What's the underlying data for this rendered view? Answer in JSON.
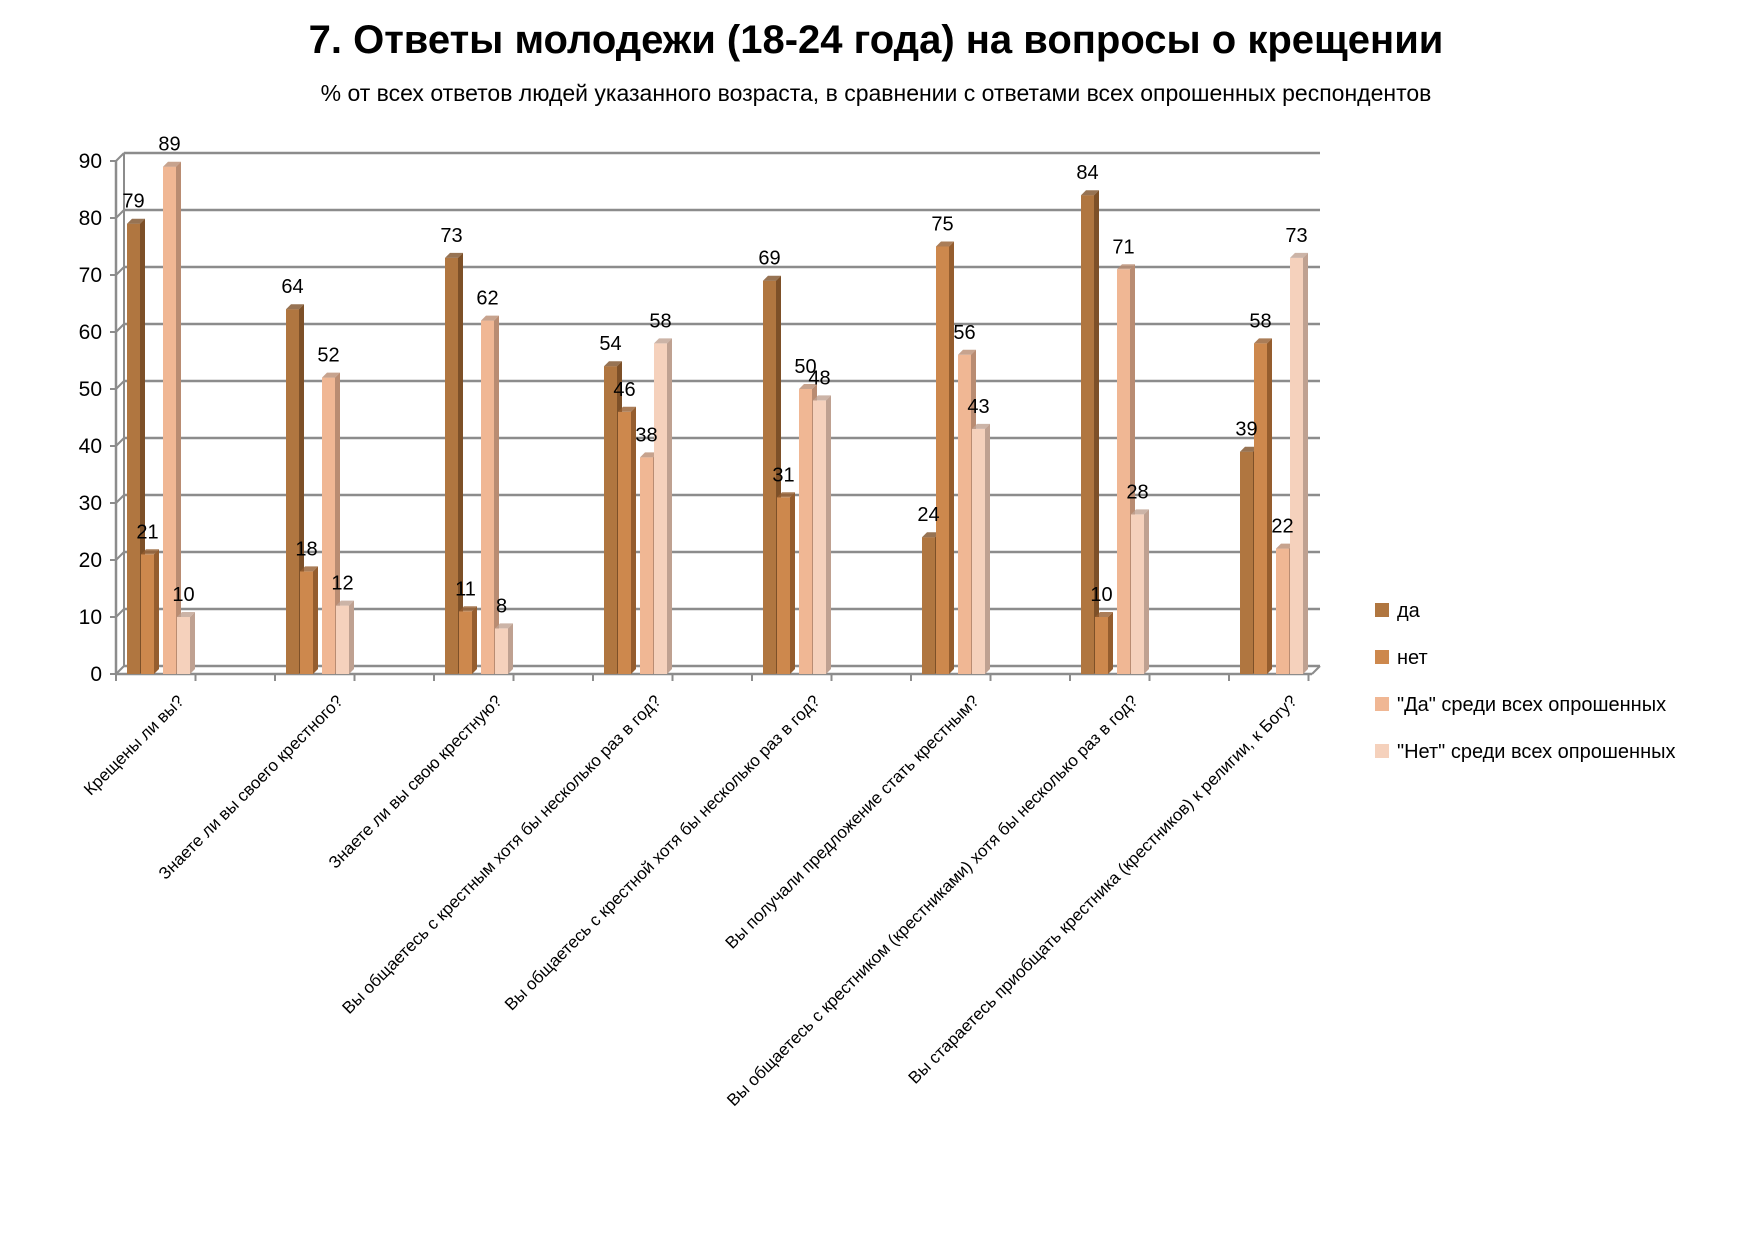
{
  "chart_data": {
    "type": "bar",
    "title": "7. Ответы молодежи (18-24 года) на вопросы о крещении",
    "subtitle": "% от всех ответов людей указанного возраста, в сравнении с ответами всех опрошенных респондентов",
    "xlabel": "",
    "ylabel": "",
    "ylim": [
      0,
      90
    ],
    "yticks": [
      "0",
      "10",
      "20",
      "30",
      "40",
      "50",
      "60",
      "70",
      "80",
      "90"
    ],
    "grid": true,
    "legend_position": "right",
    "categories": [
      "Крещены ли вы?",
      "Знаете ли вы своего крестного?",
      "Знаете ли вы свою крестную?",
      "Вы общаетесь с крестным хотя бы несколько раз в год?",
      "Вы общаетесь с крестной хотя бы несколько раз в год?",
      "Вы получали предложение стать крестным?",
      "Вы общаетесь с крестником (крестниками) хотя бы несколько раз в год?",
      "Вы стараетесь приобщать крестника (крестников) к религии, к Богу?"
    ],
    "series": [
      {
        "name": "да",
        "color": "#b07640",
        "side": "#7d5028",
        "values": [
          79,
          64,
          73,
          54,
          69,
          24,
          84,
          39
        ]
      },
      {
        "name": "нет",
        "color": "#cd884d",
        "side": "#955d2e",
        "values": [
          21,
          18,
          11,
          46,
          31,
          75,
          10,
          58
        ]
      },
      {
        "name": "\"Да\" среди всех опрошенных",
        "color": "#f0b794",
        "side": "#b98c72",
        "values": [
          89,
          52,
          62,
          38,
          50,
          56,
          71,
          22
        ]
      },
      {
        "name": "\"Нет\" среди всех опрошенных",
        "color": "#f5d1bc",
        "side": "#bfa191",
        "values": [
          10,
          12,
          8,
          58,
          48,
          43,
          28,
          73
        ]
      }
    ]
  }
}
